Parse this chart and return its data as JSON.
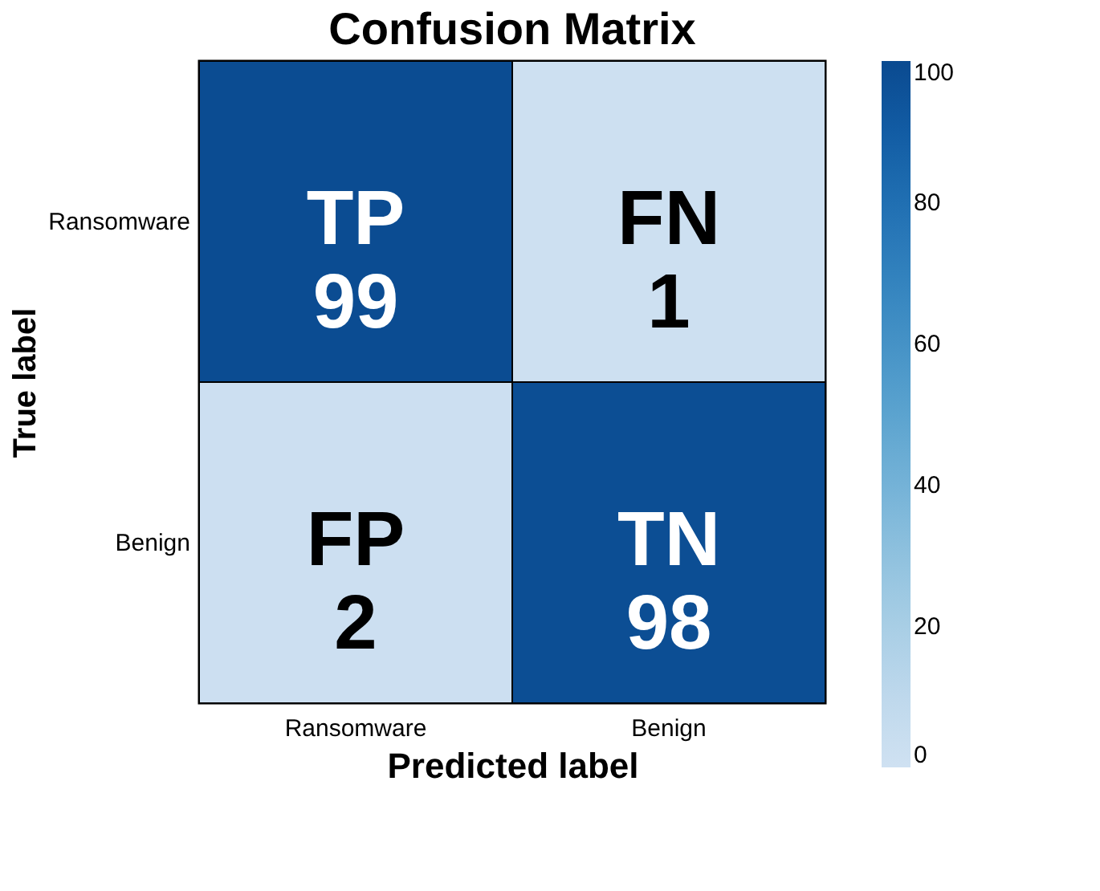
{
  "chart_data": {
    "type": "heatmap",
    "title": "Confusion Matrix",
    "xlabel": "Predicted label",
    "ylabel": "True label",
    "categories": [
      "Ransomware",
      "Benign"
    ],
    "y_categories": [
      "Ransomware",
      "Benign"
    ],
    "cells": [
      [
        99,
        1
      ],
      [
        2,
        98
      ]
    ],
    "cell_labels": [
      [
        "TP\n99",
        "FN\n1"
      ],
      [
        "FP\n2",
        "TN\n98"
      ]
    ],
    "clim": [
      0,
      100
    ],
    "cticks": [
      0,
      20,
      40,
      60,
      80,
      100
    ]
  }
}
